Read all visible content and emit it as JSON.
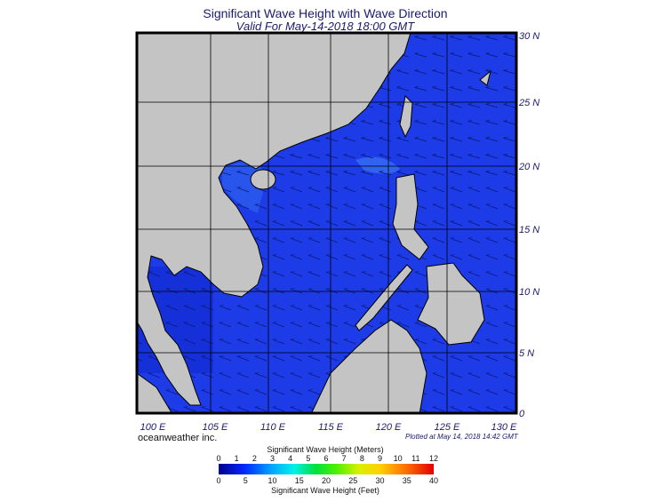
{
  "header": {
    "title": "Significant Wave Height with Wave Direction",
    "subtitle": "Valid For May-14-2018 18:00 GMT"
  },
  "axes": {
    "lat_labels": [
      "30 N",
      "25 N",
      "20 N",
      "15 N",
      "10 N",
      "5 N",
      "0"
    ],
    "lon_labels": [
      "100 E",
      "105 E",
      "110 E",
      "115 E",
      "120 E",
      "125 E",
      "130 E"
    ]
  },
  "credit": "oceanweather inc.",
  "plotted": "Plotted at May 14, 2018 14:42 GMT",
  "colorbar": {
    "title_meters": "Significant Wave Height (Meters)",
    "meters_ticks": [
      0,
      1,
      2,
      3,
      4,
      5,
      6,
      7,
      8,
      9,
      10,
      11,
      12
    ],
    "feet_ticks": [
      0,
      5,
      10,
      15,
      20,
      25,
      30,
      35,
      40
    ],
    "title_feet": "Significant Wave Height (Feet)"
  }
}
